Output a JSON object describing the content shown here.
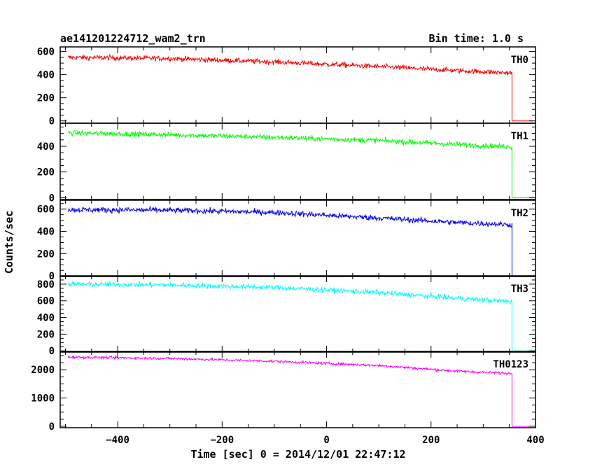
{
  "chart_data": {
    "type": "line",
    "title": "ae141201224712_wam2_trn",
    "bin_time_label": "Bin time: 1.0 s",
    "xlabel": "Time [sec] 0 = 2014/12/01 22:47:12",
    "ylabel": "Counts/sec",
    "xlim": [
      -510,
      400
    ],
    "x_ticks": [
      -400,
      -200,
      0,
      200,
      400
    ],
    "x_tick_labels": [
      "−400",
      "−200",
      "0",
      "200",
      "400"
    ],
    "grid": false,
    "panels": [
      {
        "name": "TH0",
        "color": "#ff0000",
        "ylim": [
          -20,
          640
        ],
        "y_ticks": [
          0,
          200,
          400,
          600
        ],
        "y_tick_labels": [
          "0",
          "200",
          "400",
          "600"
        ],
        "data_start": -495,
        "data_end": 355,
        "drop_to": 0,
        "x_end": 395,
        "trend": [
          [
            -495,
            550
          ],
          [
            -300,
            540
          ],
          [
            -100,
            510
          ],
          [
            100,
            470
          ],
          [
            250,
            435
          ],
          [
            355,
            415
          ]
        ],
        "noise": 22
      },
      {
        "name": "TH1",
        "color": "#00ff00",
        "ylim": [
          -15,
          580
        ],
        "y_ticks": [
          0,
          200,
          400
        ],
        "y_tick_labels": [
          "0",
          "200",
          "400"
        ],
        "data_start": -495,
        "data_end": 355,
        "drop_to": 0,
        "x_end": 395,
        "trend": [
          [
            -495,
            505
          ],
          [
            -300,
            490
          ],
          [
            -100,
            470
          ],
          [
            100,
            445
          ],
          [
            250,
            415
          ],
          [
            355,
            395
          ]
        ],
        "noise": 20
      },
      {
        "name": "TH2",
        "color": "#0000ff",
        "ylim": [
          -5,
          680
        ],
        "y_ticks": [
          0,
          200,
          400,
          600
        ],
        "y_tick_labels": [
          "0",
          "200",
          "400",
          "600"
        ],
        "data_start": -495,
        "data_end": 355,
        "drop_to": 0,
        "x_end": 395,
        "trend": [
          [
            -495,
            595
          ],
          [
            -300,
            590
          ],
          [
            -100,
            570
          ],
          [
            100,
            520
          ],
          [
            250,
            480
          ],
          [
            355,
            460
          ]
        ],
        "noise": 25
      },
      {
        "name": "TH3",
        "color": "#00ffff",
        "ylim": [
          -15,
          900
        ],
        "y_ticks": [
          0,
          200,
          400,
          600,
          800
        ],
        "y_tick_labels": [
          "0",
          "200",
          "400",
          "600",
          "800"
        ],
        "data_start": -495,
        "data_end": 355,
        "drop_to": 0,
        "x_end": 395,
        "trend": [
          [
            -495,
            800
          ],
          [
            -300,
            790
          ],
          [
            -100,
            760
          ],
          [
            100,
            700
          ],
          [
            250,
            630
          ],
          [
            355,
            590
          ]
        ],
        "noise": 30
      },
      {
        "name": "TH0123",
        "color": "#ff00ff",
        "ylim": [
          -50,
          2650
        ],
        "y_ticks": [
          0,
          1000,
          2000
        ],
        "y_tick_labels": [
          "0",
          "1000",
          "2000"
        ],
        "data_start": -495,
        "data_end": 355,
        "drop_to": 0,
        "x_end": 395,
        "trend": [
          [
            -495,
            2450
          ],
          [
            -300,
            2400
          ],
          [
            -100,
            2300
          ],
          [
            100,
            2150
          ],
          [
            250,
            1950
          ],
          [
            355,
            1870
          ]
        ],
        "noise": 45
      }
    ]
  }
}
